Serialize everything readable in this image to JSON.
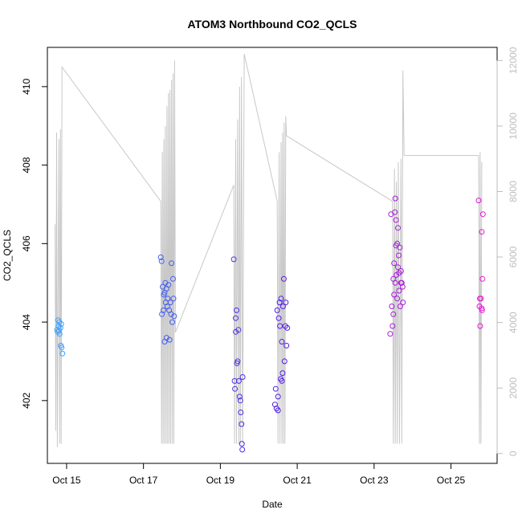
{
  "chart_data": {
    "type": "scatter",
    "title": "ATOM3 Northbound CO2_QCLS",
    "xlabel": "Date",
    "ylabel": "CO2_QCLS",
    "x_ticks": [
      "Oct 15",
      "Oct 17",
      "Oct 19",
      "Oct 21",
      "Oct 23",
      "Oct 25"
    ],
    "x_tick_days": [
      15,
      17,
      19,
      21,
      23,
      25
    ],
    "xlim": [
      14.5,
      26.2
    ],
    "ylim": [
      400.4,
      411.0
    ],
    "y_ticks": [
      402,
      404,
      406,
      408,
      410
    ],
    "y2lim": [
      -300,
      12400
    ],
    "y2_ticks": [
      0,
      2000,
      4000,
      6000,
      8000,
      10000,
      12000
    ],
    "grid": false,
    "legend": "none",
    "colors": {
      "series_start": "#3fa3ff",
      "series_mid": "#4b1ee6",
      "series_end": "#e81ad6",
      "altitude_line": "#c8c8c8"
    },
    "series": [
      {
        "points": [
          [
            14.75,
            403.8
          ],
          [
            14.77,
            403.75
          ],
          [
            14.79,
            403.9
          ],
          [
            14.81,
            404.0
          ],
          [
            14.82,
            403.7
          ],
          [
            14.84,
            403.85
          ],
          [
            14.85,
            403.4
          ],
          [
            14.86,
            403.95
          ],
          [
            14.87,
            403.35
          ],
          [
            14.89,
            403.2
          ],
          [
            14.78,
            404.05
          ],
          [
            14.8,
            403.78
          ],
          [
            17.45,
            405.65
          ],
          [
            17.47,
            405.55
          ],
          [
            17.48,
            404.2
          ],
          [
            17.5,
            404.9
          ],
          [
            17.52,
            404.3
          ],
          [
            17.53,
            404.7
          ],
          [
            17.55,
            403.5
          ],
          [
            17.57,
            405.0
          ],
          [
            17.58,
            404.5
          ],
          [
            17.6,
            403.6
          ],
          [
            17.62,
            404.4
          ],
          [
            17.63,
            404.6
          ],
          [
            17.65,
            404.95
          ],
          [
            17.67,
            404.3
          ],
          [
            17.68,
            403.55
          ],
          [
            17.7,
            404.5
          ],
          [
            17.72,
            404.2
          ],
          [
            17.73,
            405.5
          ],
          [
            17.75,
            404.0
          ],
          [
            17.77,
            405.1
          ],
          [
            17.78,
            404.6
          ],
          [
            17.8,
            404.15
          ],
          [
            17.6,
            404.85
          ],
          [
            17.55,
            404.75
          ],
          [
            19.35,
            405.6
          ],
          [
            19.37,
            402.5
          ],
          [
            19.38,
            402.3
          ],
          [
            19.4,
            404.1
          ],
          [
            19.42,
            404.3
          ],
          [
            19.43,
            402.95
          ],
          [
            19.45,
            403.0
          ],
          [
            19.47,
            403.8
          ],
          [
            19.48,
            402.5
          ],
          [
            19.5,
            402.1
          ],
          [
            19.52,
            402.0
          ],
          [
            19.53,
            401.7
          ],
          [
            19.55,
            401.4
          ],
          [
            19.56,
            400.9
          ],
          [
            19.57,
            400.75
          ],
          [
            19.58,
            402.6
          ],
          [
            19.4,
            403.75
          ],
          [
            20.42,
            401.9
          ],
          [
            20.44,
            402.3
          ],
          [
            20.46,
            401.8
          ],
          [
            20.48,
            404.3
          ],
          [
            20.5,
            402.1
          ],
          [
            20.52,
            404.1
          ],
          [
            20.54,
            404.5
          ],
          [
            20.55,
            403.9
          ],
          [
            20.57,
            402.55
          ],
          [
            20.58,
            404.6
          ],
          [
            20.6,
            403.5
          ],
          [
            20.62,
            402.7
          ],
          [
            20.63,
            404.4
          ],
          [
            20.65,
            405.1
          ],
          [
            20.67,
            403.0
          ],
          [
            20.69,
            403.9
          ],
          [
            20.7,
            404.5
          ],
          [
            20.72,
            403.4
          ],
          [
            20.74,
            403.85
          ],
          [
            20.5,
            401.75
          ],
          [
            20.6,
            402.5
          ],
          [
            23.42,
            403.7
          ],
          [
            23.44,
            406.75
          ],
          [
            23.46,
            404.4
          ],
          [
            23.48,
            403.9
          ],
          [
            23.5,
            405.1
          ],
          [
            23.52,
            405.5
          ],
          [
            23.54,
            406.8
          ],
          [
            23.55,
            407.15
          ],
          [
            23.57,
            406.6
          ],
          [
            23.58,
            405.2
          ],
          [
            23.6,
            406.0
          ],
          [
            23.62,
            406.4
          ],
          [
            23.64,
            405.7
          ],
          [
            23.65,
            404.8
          ],
          [
            23.67,
            405.9
          ],
          [
            23.68,
            404.4
          ],
          [
            23.7,
            405.3
          ],
          [
            23.72,
            405.0
          ],
          [
            23.74,
            404.9
          ],
          [
            23.75,
            404.5
          ],
          [
            23.5,
            404.2
          ],
          [
            23.55,
            405.0
          ],
          [
            23.6,
            404.6
          ],
          [
            23.65,
            405.25
          ],
          [
            23.7,
            405.0
          ],
          [
            23.52,
            404.7
          ],
          [
            23.62,
            405.4
          ],
          [
            23.57,
            405.95
          ],
          [
            25.72,
            407.1
          ],
          [
            25.74,
            404.4
          ],
          [
            25.76,
            403.9
          ],
          [
            25.78,
            404.6
          ],
          [
            25.8,
            406.3
          ],
          [
            25.81,
            404.3
          ],
          [
            25.82,
            405.1
          ],
          [
            25.83,
            406.75
          ],
          [
            25.75,
            404.6
          ],
          [
            25.8,
            404.35
          ]
        ]
      }
    ],
    "altitude_track": [
      [
        14.7,
        7000
      ],
      [
        14.72,
        700
      ],
      [
        14.74,
        9800
      ],
      [
        14.76,
        200
      ],
      [
        14.78,
        5000
      ],
      [
        14.8,
        9600
      ],
      [
        14.82,
        300
      ],
      [
        14.84,
        9900
      ],
      [
        14.86,
        300
      ],
      [
        14.88,
        11800
      ],
      [
        17.45,
        7700
      ],
      [
        17.47,
        300
      ],
      [
        17.49,
        9200
      ],
      [
        17.51,
        300
      ],
      [
        17.53,
        9600
      ],
      [
        17.55,
        300
      ],
      [
        17.57,
        10000
      ],
      [
        17.59,
        300
      ],
      [
        17.61,
        10600
      ],
      [
        17.63,
        300
      ],
      [
        17.65,
        11000
      ],
      [
        17.67,
        300
      ],
      [
        17.69,
        11100
      ],
      [
        17.71,
        300
      ],
      [
        17.73,
        11400
      ],
      [
        17.75,
        300
      ],
      [
        17.77,
        11600
      ],
      [
        17.79,
        300
      ],
      [
        17.81,
        12000
      ],
      [
        17.83,
        3700
      ],
      [
        19.35,
        8200
      ],
      [
        19.37,
        300
      ],
      [
        19.4,
        9600
      ],
      [
        19.42,
        300
      ],
      [
        19.45,
        10200
      ],
      [
        19.48,
        300
      ],
      [
        19.5,
        11200
      ],
      [
        19.52,
        300
      ],
      [
        19.55,
        11500
      ],
      [
        19.58,
        300
      ],
      [
        19.62,
        12200
      ],
      [
        20.48,
        7700
      ],
      [
        20.5,
        300
      ],
      [
        20.53,
        9200
      ],
      [
        20.55,
        300
      ],
      [
        20.58,
        9500
      ],
      [
        20.6,
        300
      ],
      [
        20.62,
        9800
      ],
      [
        20.64,
        300
      ],
      [
        20.66,
        10100
      ],
      [
        20.68,
        300
      ],
      [
        20.7,
        10300
      ],
      [
        20.72,
        9700
      ],
      [
        23.48,
        7700
      ],
      [
        23.5,
        300
      ],
      [
        23.53,
        8700
      ],
      [
        23.55,
        300
      ],
      [
        23.58,
        8300
      ],
      [
        23.6,
        300
      ],
      [
        23.63,
        8900
      ],
      [
        23.66,
        300
      ],
      [
        23.7,
        9000
      ],
      [
        23.72,
        300
      ],
      [
        23.75,
        11700
      ],
      [
        23.78,
        9100
      ],
      [
        25.72,
        9100
      ],
      [
        25.74,
        300
      ],
      [
        25.76,
        9200
      ],
      [
        25.78,
        300
      ],
      [
        25.8,
        8900
      ]
    ]
  }
}
